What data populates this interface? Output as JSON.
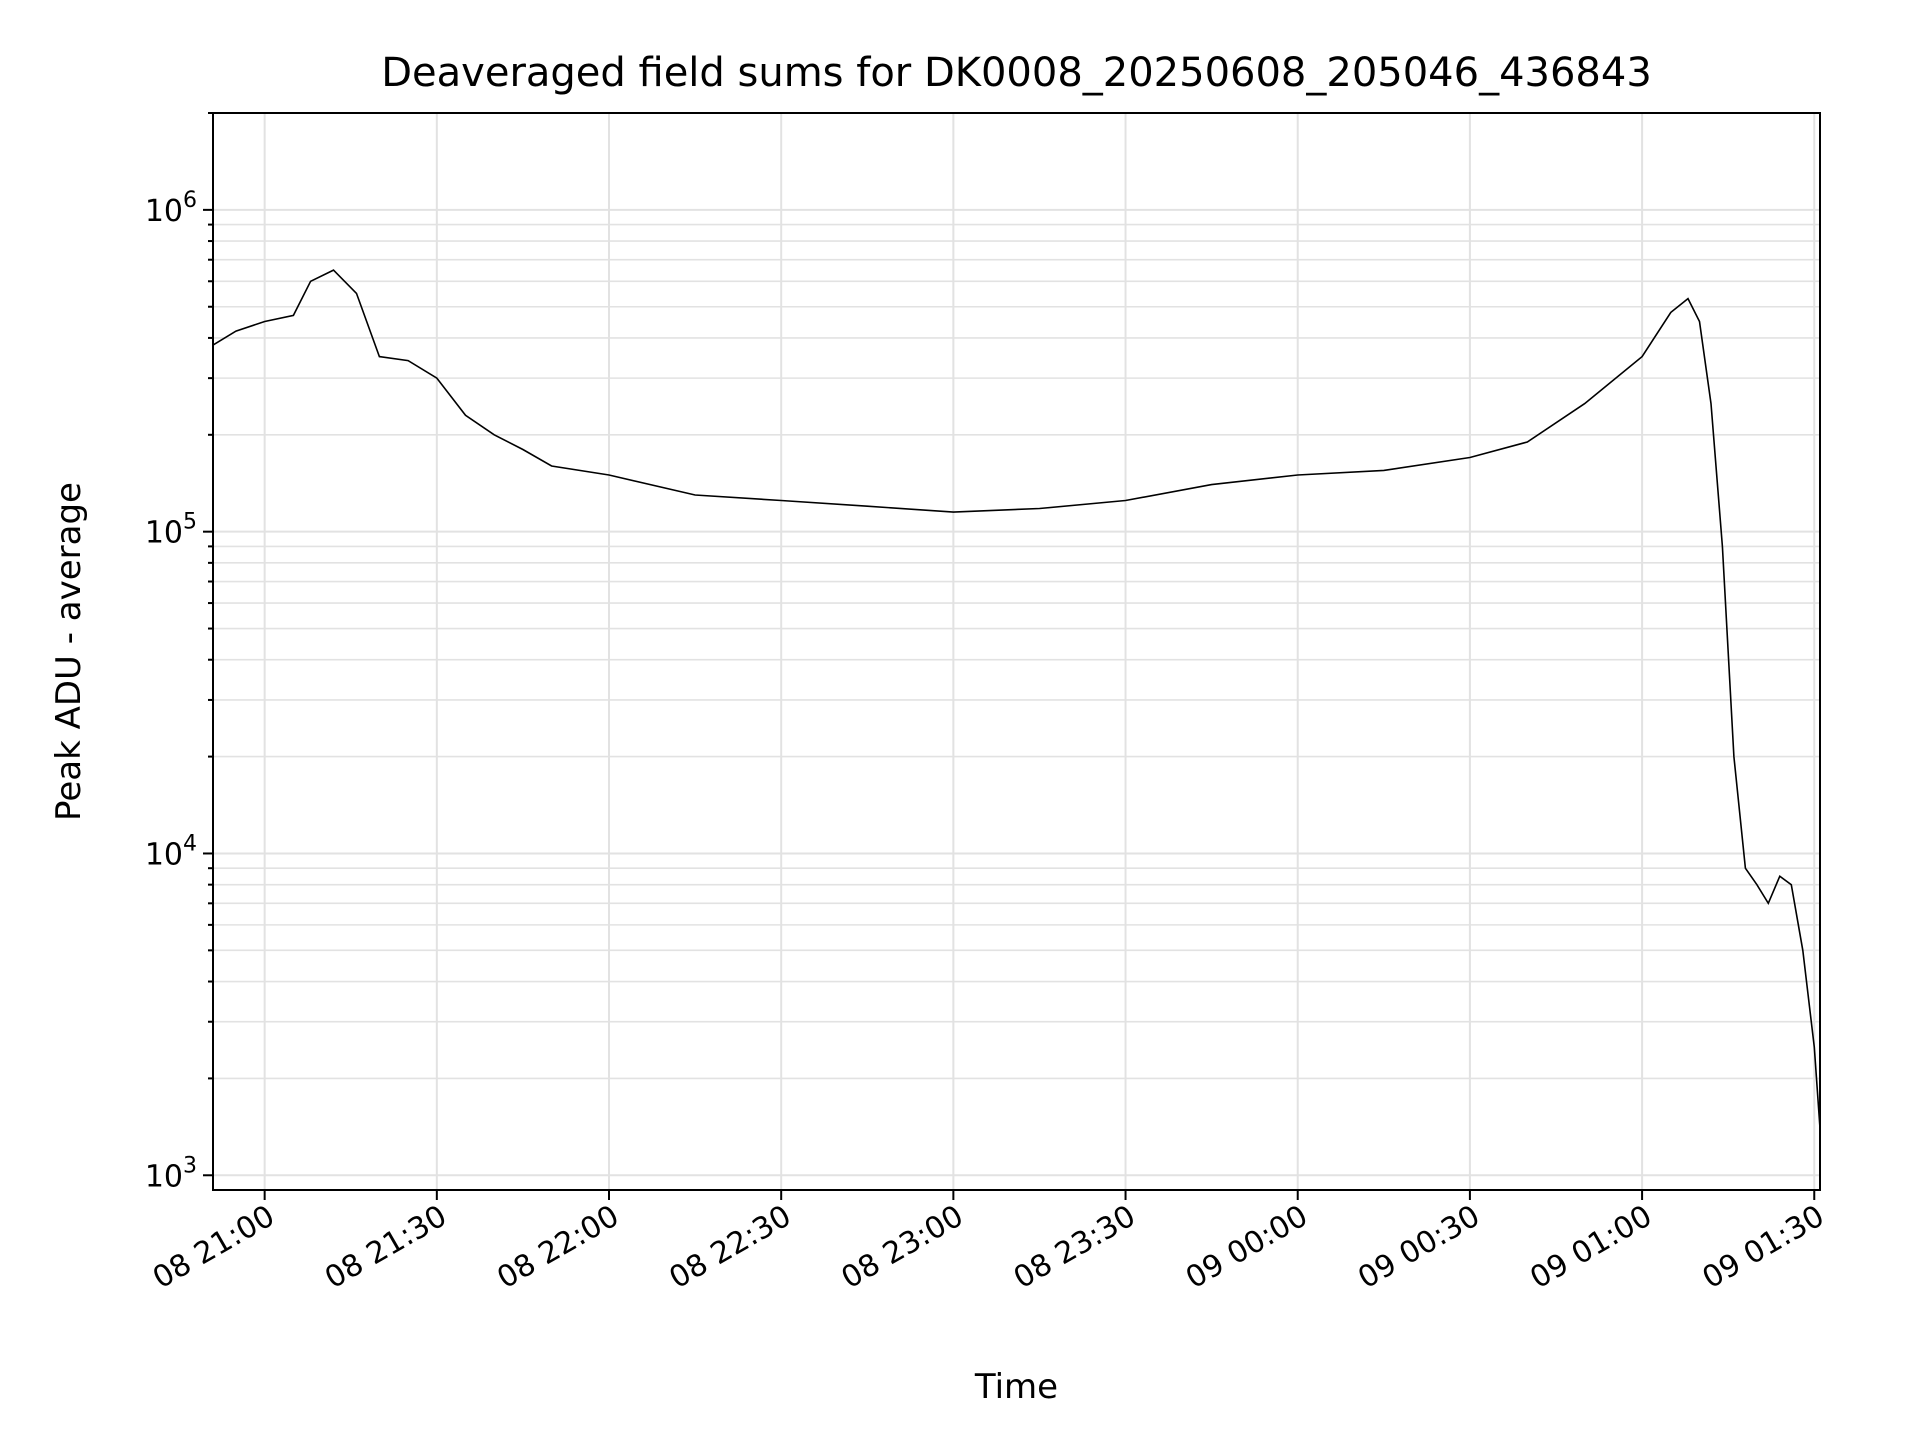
{
  "chart_data": {
    "type": "line",
    "title": "Deaveraged field sums for DK0008_20250608_205046_436843",
    "xlabel": "Time",
    "ylabel": "Peak ADU - average",
    "yscale": "log",
    "ylim": [
      900,
      2000000
    ],
    "xlim": [
      "2025-06-08T20:51",
      "2025-06-09T01:31"
    ],
    "grid": true,
    "line_color": "#000000",
    "x_ticks": [
      {
        "time": "2025-06-08T21:00",
        "label": "08 21:00"
      },
      {
        "time": "2025-06-08T21:30",
        "label": "08 21:30"
      },
      {
        "time": "2025-06-08T22:00",
        "label": "08 22:00"
      },
      {
        "time": "2025-06-08T22:30",
        "label": "08 22:30"
      },
      {
        "time": "2025-06-08T23:00",
        "label": "08 23:00"
      },
      {
        "time": "2025-06-08T23:30",
        "label": "08 23:30"
      },
      {
        "time": "2025-06-09T00:00",
        "label": "09 00:00"
      },
      {
        "time": "2025-06-09T00:30",
        "label": "09 00:30"
      },
      {
        "time": "2025-06-09T01:00",
        "label": "09 01:00"
      },
      {
        "time": "2025-06-09T01:30",
        "label": "09 01:30"
      }
    ],
    "y_ticks": [
      {
        "value": 1000,
        "base": "10",
        "exp": "3"
      },
      {
        "value": 10000,
        "base": "10",
        "exp": "4"
      },
      {
        "value": 100000,
        "base": "10",
        "exp": "5"
      },
      {
        "value": 1000000,
        "base": "10",
        "exp": "6"
      }
    ],
    "series": [
      {
        "x": [
          "2025-06-08T20:51",
          "2025-06-08T20:55",
          "2025-06-08T21:00",
          "2025-06-08T21:05",
          "2025-06-08T21:08",
          "2025-06-08T21:12",
          "2025-06-08T21:16",
          "2025-06-08T21:20",
          "2025-06-08T21:25",
          "2025-06-08T21:30",
          "2025-06-08T21:35",
          "2025-06-08T21:40",
          "2025-06-08T21:45",
          "2025-06-08T21:50",
          "2025-06-08T22:00",
          "2025-06-08T22:15",
          "2025-06-08T22:30",
          "2025-06-08T22:45",
          "2025-06-08T23:00",
          "2025-06-08T23:15",
          "2025-06-08T23:30",
          "2025-06-08T23:45",
          "2025-06-09T00:00",
          "2025-06-09T00:15",
          "2025-06-09T00:30",
          "2025-06-09T00:40",
          "2025-06-09T00:50",
          "2025-06-09T01:00",
          "2025-06-09T01:05",
          "2025-06-09T01:08",
          "2025-06-09T01:10",
          "2025-06-09T01:12",
          "2025-06-09T01:14",
          "2025-06-09T01:16",
          "2025-06-09T01:18",
          "2025-06-09T01:20",
          "2025-06-09T01:22",
          "2025-06-09T01:24",
          "2025-06-09T01:26",
          "2025-06-09T01:28",
          "2025-06-09T01:30",
          "2025-06-09T01:31"
        ],
        "y": [
          380000,
          420000,
          450000,
          470000,
          600000,
          650000,
          550000,
          350000,
          340000,
          300000,
          230000,
          200000,
          180000,
          160000,
          150000,
          130000,
          125000,
          120000,
          115000,
          118000,
          125000,
          140000,
          150000,
          155000,
          170000,
          190000,
          250000,
          350000,
          480000,
          530000,
          450000,
          250000,
          90000,
          20000,
          9000,
          8000,
          7000,
          8500,
          8000,
          5000,
          2500,
          1400
        ]
      }
    ]
  }
}
